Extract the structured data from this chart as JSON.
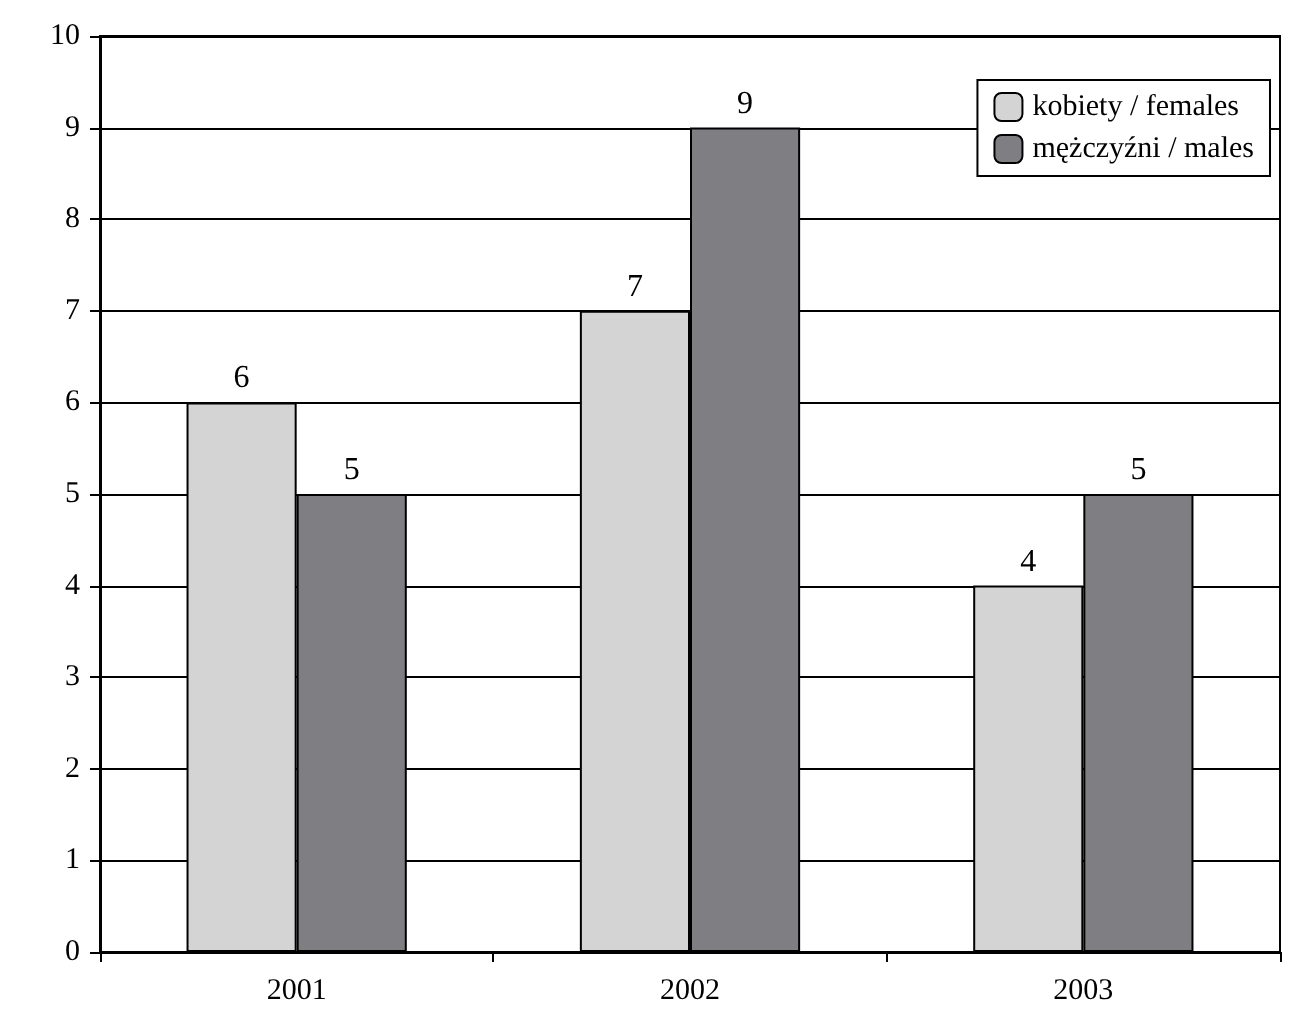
{
  "chart_data": {
    "type": "bar",
    "categories": [
      "2001",
      "2002",
      "2003"
    ],
    "series": [
      {
        "name": "kobiety / females",
        "color": "#d4d4d4",
        "values": [
          6,
          7,
          4
        ]
      },
      {
        "name": "mężczyźni / males",
        "color": "#7f7f83",
        "values": [
          5,
          9,
          5
        ]
      }
    ],
    "ylim": [
      0,
      10
    ],
    "yticks": [
      0,
      1,
      2,
      3,
      4,
      5,
      6,
      7,
      8,
      9,
      10
    ],
    "grid": "y",
    "legend": "top right",
    "data_labels": true
  }
}
